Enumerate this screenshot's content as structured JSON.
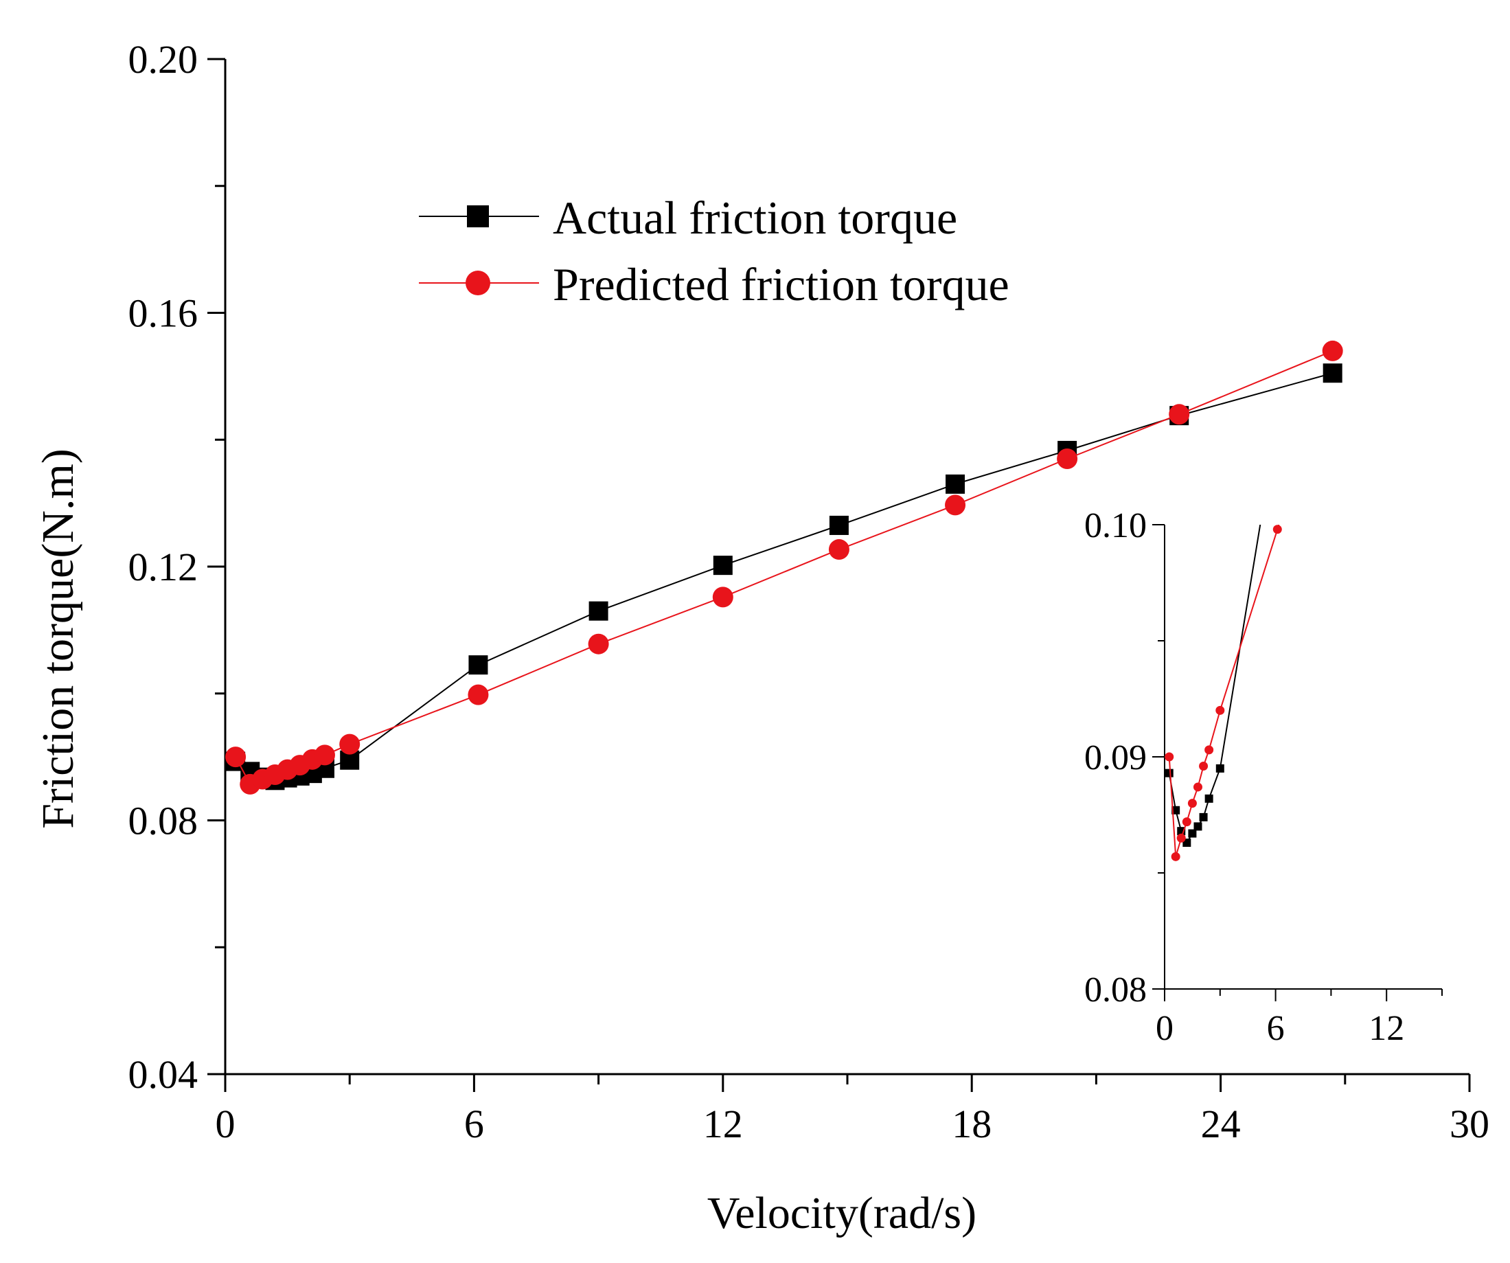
{
  "chart_data": {
    "type": "line",
    "title": "",
    "xlabel": "Velocity(rad/s)",
    "ylabel": "Friction torque(N.m)",
    "xlim": [
      0,
      30
    ],
    "ylim": [
      0.04,
      0.2
    ],
    "xticks": [
      "0",
      "6",
      "12",
      "18",
      "24",
      "30"
    ],
    "yticks": [
      "0.04",
      "0.08",
      "0.12",
      "0.16",
      "0.20"
    ],
    "legend": [
      "Actual friction torque",
      "Predicted friction torque"
    ],
    "legend_position": "upper-left",
    "series": [
      {
        "name": "Actual friction torque",
        "color": "#000000",
        "marker": "square",
        "x": [
          0.25,
          0.6,
          0.9,
          1.2,
          1.5,
          1.8,
          2.1,
          2.4,
          3.0,
          6.1,
          9.0,
          12.0,
          14.8,
          17.6,
          20.3,
          23.0,
          26.7
        ],
        "y": [
          0.0893,
          0.0877,
          0.0868,
          0.0863,
          0.0867,
          0.087,
          0.0874,
          0.0882,
          0.0895,
          0.1045,
          0.113,
          0.1202,
          0.1265,
          0.133,
          0.1383,
          0.1438,
          0.1505
        ]
      },
      {
        "name": "Predicted friction torque",
        "color": "#e8141b",
        "marker": "circle",
        "x": [
          0.25,
          0.6,
          0.9,
          1.2,
          1.5,
          1.8,
          2.1,
          2.4,
          3.0,
          6.1,
          9.0,
          12.0,
          14.8,
          17.6,
          20.3,
          23.0,
          26.7
        ],
        "y": [
          0.09,
          0.0857,
          0.0865,
          0.0872,
          0.088,
          0.0887,
          0.0896,
          0.0903,
          0.092,
          0.0998,
          0.1078,
          0.1152,
          0.1227,
          0.1297,
          0.137,
          0.144,
          0.154
        ]
      }
    ],
    "inset": {
      "xlim": [
        0,
        15
      ],
      "ylim": [
        0.08,
        0.1
      ],
      "xticks": [
        "0",
        "6",
        "12"
      ],
      "yticks": [
        "0.08",
        "0.09",
        "0.10"
      ]
    }
  }
}
